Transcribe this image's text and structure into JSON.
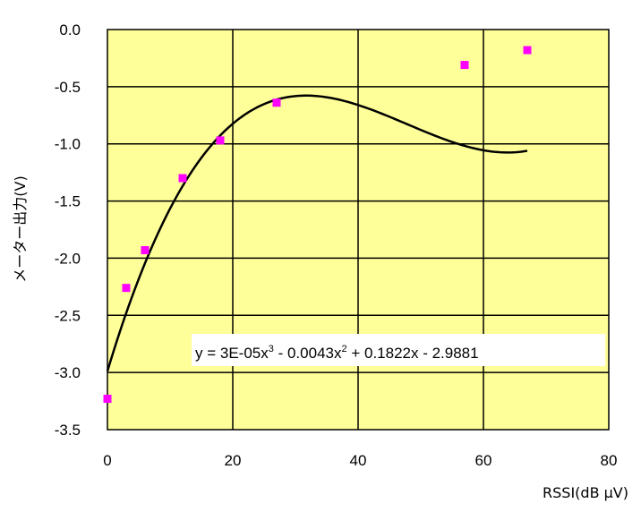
{
  "chart_data": {
    "type": "scatter",
    "xlabel": "RSSI(dB μV)",
    "ylabel": "メーター出力(V)",
    "xlim": [
      0,
      80
    ],
    "ylim": [
      -3.5,
      0.0
    ],
    "x_ticks": [
      "0",
      "20",
      "40",
      "60",
      "80"
    ],
    "y_ticks": [
      "0.0",
      "-0.5",
      "-1.0",
      "-1.5",
      "-2.0",
      "-2.5",
      "-3.0",
      "-3.5"
    ],
    "grid": true,
    "plot_background": "#FFFF99",
    "series": [
      {
        "marker_color": "#FF00FF",
        "points": [
          {
            "x": 0,
            "y": -3.23
          },
          {
            "x": 3,
            "y": -2.26
          },
          {
            "x": 6,
            "y": -1.93
          },
          {
            "x": 12,
            "y": -1.3
          },
          {
            "x": 18,
            "y": -0.97
          },
          {
            "x": 27,
            "y": -0.64
          },
          {
            "x": 57,
            "y": -0.31
          },
          {
            "x": 67,
            "y": -0.18
          }
        ]
      }
    ],
    "trendline": {
      "type": "polynomial",
      "order": 3,
      "coefficients": [
        3e-05,
        -0.0043,
        0.1822,
        -2.9881
      ],
      "x_range": [
        0,
        67
      ],
      "equation": {
        "parts": [
          "y = 3E-05x",
          "3",
          " - 0.0043x",
          "2",
          " + 0.1822x - 2.9881"
        ]
      }
    }
  }
}
